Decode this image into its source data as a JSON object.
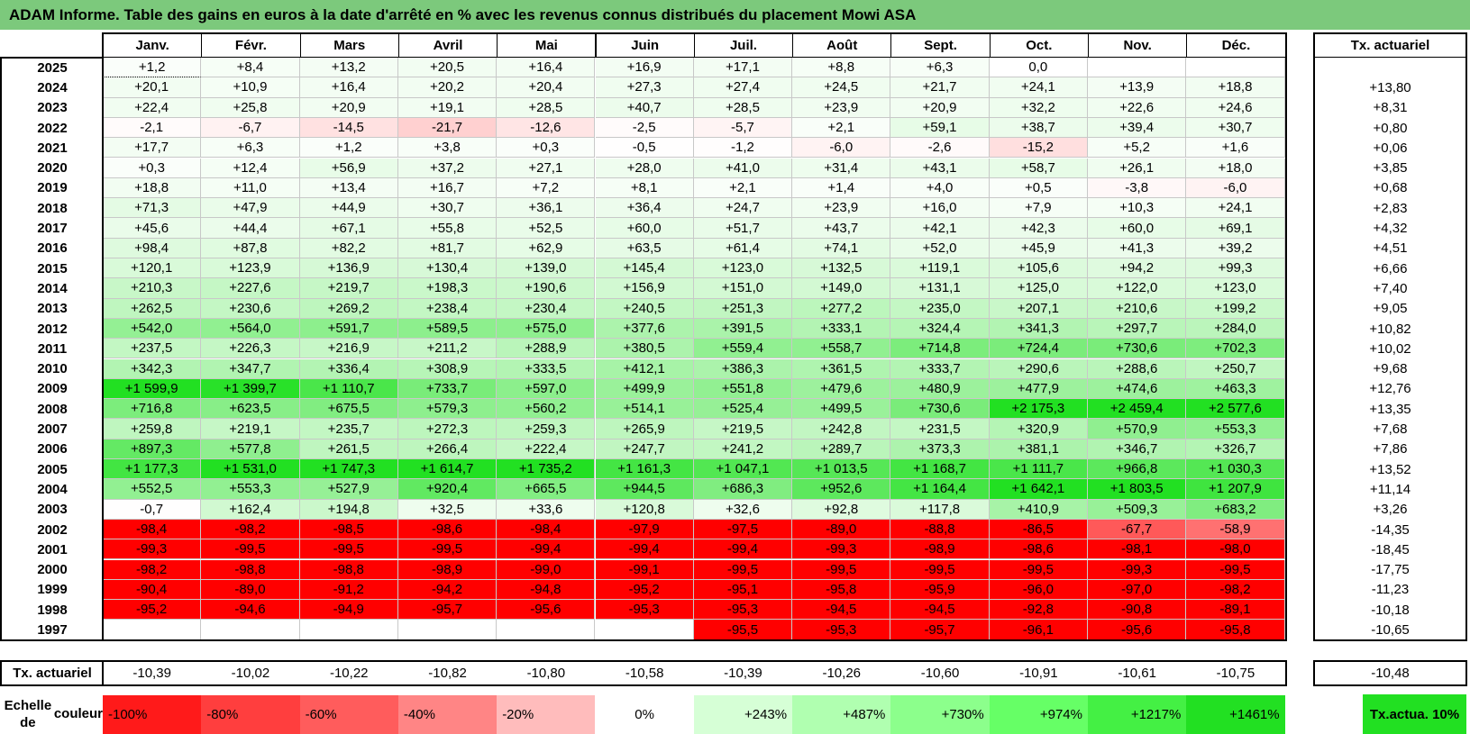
{
  "title": "ADAM Informe. Table des gains en euros à la date d'arrêté en % avec les revenus connus distribués du placement Mowi ASA",
  "chart_data": {
    "type": "heatmap",
    "columns": [
      "Janv.",
      "Févr.",
      "Mars",
      "Avril",
      "Mai",
      "Juin",
      "Juil.",
      "Août",
      "Sept.",
      "Oct.",
      "Nov.",
      "Déc."
    ],
    "actuarial_header": "Tx. actuariel",
    "rows": [
      {
        "year": "2025",
        "values": [
          "+1,2",
          "+8,4",
          "+13,2",
          "+20,5",
          "+16,4",
          "+16,9",
          "+17,1",
          "+8,8",
          "+6,3",
          "0,0",
          "",
          ""
        ],
        "actuarial": ""
      },
      {
        "year": "2024",
        "values": [
          "+20,1",
          "+10,9",
          "+16,4",
          "+20,2",
          "+20,4",
          "+27,3",
          "+27,4",
          "+24,5",
          "+21,7",
          "+24,1",
          "+13,9",
          "+18,8"
        ],
        "actuarial": "+13,80"
      },
      {
        "year": "2023",
        "values": [
          "+22,4",
          "+25,8",
          "+20,9",
          "+19,1",
          "+28,5",
          "+40,7",
          "+28,5",
          "+23,9",
          "+20,9",
          "+32,2",
          "+22,6",
          "+24,6"
        ],
        "actuarial": "+8,31"
      },
      {
        "year": "2022",
        "values": [
          "-2,1",
          "-6,7",
          "-14,5",
          "-21,7",
          "-12,6",
          "-2,5",
          "-5,7",
          "+2,1",
          "+59,1",
          "+38,7",
          "+39,4",
          "+30,7"
        ],
        "actuarial": "+0,80"
      },
      {
        "year": "2021",
        "values": [
          "+17,7",
          "+6,3",
          "+1,2",
          "+3,8",
          "+0,3",
          "-0,5",
          "-1,2",
          "-6,0",
          "-2,6",
          "-15,2",
          "+5,2",
          "+1,6"
        ],
        "actuarial": "+0,06"
      },
      {
        "year": "2020",
        "values": [
          "+0,3",
          "+12,4",
          "+56,9",
          "+37,2",
          "+27,1",
          "+28,0",
          "+41,0",
          "+31,4",
          "+43,1",
          "+58,7",
          "+26,1",
          "+18,0"
        ],
        "actuarial": "+3,85"
      },
      {
        "year": "2019",
        "values": [
          "+18,8",
          "+11,0",
          "+13,4",
          "+16,7",
          "+7,2",
          "+8,1",
          "+2,1",
          "+1,4",
          "+4,0",
          "+0,5",
          "-3,8",
          "-6,0"
        ],
        "actuarial": "+0,68"
      },
      {
        "year": "2018",
        "values": [
          "+71,3",
          "+47,9",
          "+44,9",
          "+30,7",
          "+36,1",
          "+36,4",
          "+24,7",
          "+23,9",
          "+16,0",
          "+7,9",
          "+10,3",
          "+24,1"
        ],
        "actuarial": "+2,83"
      },
      {
        "year": "2017",
        "values": [
          "+45,6",
          "+44,4",
          "+67,1",
          "+55,8",
          "+52,5",
          "+60,0",
          "+51,7",
          "+43,7",
          "+42,1",
          "+42,3",
          "+60,0",
          "+69,1"
        ],
        "actuarial": "+4,32"
      },
      {
        "year": "2016",
        "values": [
          "+98,4",
          "+87,8",
          "+82,2",
          "+81,7",
          "+62,9",
          "+63,5",
          "+61,4",
          "+74,1",
          "+52,0",
          "+45,9",
          "+41,3",
          "+39,2"
        ],
        "actuarial": "+4,51"
      },
      {
        "year": "2015",
        "values": [
          "+120,1",
          "+123,9",
          "+136,9",
          "+130,4",
          "+139,0",
          "+145,4",
          "+123,0",
          "+132,5",
          "+119,1",
          "+105,6",
          "+94,2",
          "+99,3"
        ],
        "actuarial": "+6,66"
      },
      {
        "year": "2014",
        "values": [
          "+210,3",
          "+227,6",
          "+219,7",
          "+198,3",
          "+190,6",
          "+156,9",
          "+151,0",
          "+149,0",
          "+131,1",
          "+125,0",
          "+122,0",
          "+123,0"
        ],
        "actuarial": "+7,40"
      },
      {
        "year": "2013",
        "values": [
          "+262,5",
          "+230,6",
          "+269,2",
          "+238,4",
          "+230,4",
          "+240,5",
          "+251,3",
          "+277,2",
          "+235,0",
          "+207,1",
          "+210,6",
          "+199,2"
        ],
        "actuarial": "+9,05"
      },
      {
        "year": "2012",
        "values": [
          "+542,0",
          "+564,0",
          "+591,7",
          "+589,5",
          "+575,0",
          "+377,6",
          "+391,5",
          "+333,1",
          "+324,4",
          "+341,3",
          "+297,7",
          "+284,0"
        ],
        "actuarial": "+10,82"
      },
      {
        "year": "2011",
        "values": [
          "+237,5",
          "+226,3",
          "+216,9",
          "+211,2",
          "+288,9",
          "+380,5",
          "+559,4",
          "+558,7",
          "+714,8",
          "+724,4",
          "+730,6",
          "+702,3"
        ],
        "actuarial": "+10,02"
      },
      {
        "year": "2010",
        "values": [
          "+342,3",
          "+347,7",
          "+336,4",
          "+308,9",
          "+333,5",
          "+412,1",
          "+386,3",
          "+361,5",
          "+333,7",
          "+290,6",
          "+288,6",
          "+250,7"
        ],
        "actuarial": "+9,68"
      },
      {
        "year": "2009",
        "values": [
          "+1 599,9",
          "+1 399,7",
          "+1 110,7",
          "+733,7",
          "+597,0",
          "+499,9",
          "+551,8",
          "+479,6",
          "+480,9",
          "+477,9",
          "+474,6",
          "+463,3"
        ],
        "actuarial": "+12,76"
      },
      {
        "year": "2008",
        "values": [
          "+716,8",
          "+623,5",
          "+675,5",
          "+579,3",
          "+560,2",
          "+514,1",
          "+525,4",
          "+499,5",
          "+730,6",
          "+2 175,3",
          "+2 459,4",
          "+2 577,6"
        ],
        "actuarial": "+13,35"
      },
      {
        "year": "2007",
        "values": [
          "+259,8",
          "+219,1",
          "+235,7",
          "+272,3",
          "+259,3",
          "+265,9",
          "+219,5",
          "+242,8",
          "+231,5",
          "+320,9",
          "+570,9",
          "+553,3"
        ],
        "actuarial": "+7,68"
      },
      {
        "year": "2006",
        "values": [
          "+897,3",
          "+577,8",
          "+261,5",
          "+266,4",
          "+222,4",
          "+247,7",
          "+241,2",
          "+289,7",
          "+373,3",
          "+381,1",
          "+346,7",
          "+326,7"
        ],
        "actuarial": "+7,86"
      },
      {
        "year": "2005",
        "values": [
          "+1 177,3",
          "+1 531,0",
          "+1 747,3",
          "+1 614,7",
          "+1 735,2",
          "+1 161,3",
          "+1 047,1",
          "+1 013,5",
          "+1 168,7",
          "+1 111,7",
          "+966,8",
          "+1 030,3"
        ],
        "actuarial": "+13,52"
      },
      {
        "year": "2004",
        "values": [
          "+552,5",
          "+553,3",
          "+527,9",
          "+920,4",
          "+665,5",
          "+944,5",
          "+686,3",
          "+952,6",
          "+1 164,4",
          "+1 642,1",
          "+1 803,5",
          "+1 207,9"
        ],
        "actuarial": "+11,14"
      },
      {
        "year": "2003",
        "values": [
          "-0,7",
          "+162,4",
          "+194,8",
          "+32,5",
          "+33,6",
          "+120,8",
          "+32,6",
          "+92,8",
          "+117,8",
          "+410,9",
          "+509,3",
          "+683,2"
        ],
        "actuarial": "+3,26"
      },
      {
        "year": "2002",
        "values": [
          "-98,4",
          "-98,2",
          "-98,5",
          "-98,6",
          "-98,4",
          "-97,9",
          "-97,5",
          "-89,0",
          "-88,8",
          "-86,5",
          "-67,7",
          "-58,9"
        ],
        "actuarial": "-14,35"
      },
      {
        "year": "2001",
        "values": [
          "-99,3",
          "-99,5",
          "-99,5",
          "-99,5",
          "-99,4",
          "-99,4",
          "-99,4",
          "-99,3",
          "-98,9",
          "-98,6",
          "-98,1",
          "-98,0"
        ],
        "actuarial": "-18,45"
      },
      {
        "year": "2000",
        "values": [
          "-98,2",
          "-98,8",
          "-98,8",
          "-98,9",
          "-99,0",
          "-99,1",
          "-99,5",
          "-99,5",
          "-99,5",
          "-99,5",
          "-99,3",
          "-99,5"
        ],
        "actuarial": "-17,75"
      },
      {
        "year": "1999",
        "values": [
          "-90,4",
          "-89,0",
          "-91,2",
          "-94,2",
          "-94,8",
          "-95,2",
          "-95,1",
          "-95,8",
          "-95,9",
          "-96,0",
          "-97,0",
          "-98,2"
        ],
        "actuarial": "-11,23"
      },
      {
        "year": "1998",
        "values": [
          "-95,2",
          "-94,6",
          "-94,9",
          "-95,7",
          "-95,6",
          "-95,3",
          "-95,3",
          "-94,5",
          "-94,5",
          "-92,8",
          "-90,8",
          "-89,1"
        ],
        "actuarial": "-10,18"
      },
      {
        "year": "1997",
        "values": [
          "",
          "",
          "",
          "",
          "",
          "",
          "-95,5",
          "-95,3",
          "-95,7",
          "-96,1",
          "-95,6",
          "-95,8"
        ],
        "actuarial": "-10,65"
      }
    ],
    "footer": {
      "label": "Tx. actuariel",
      "values": [
        "-10,39",
        "-10,02",
        "-10,22",
        "-10,82",
        "-10,80",
        "-10,58",
        "-10,39",
        "-10,26",
        "-10,60",
        "-10,91",
        "-10,61",
        "-10,75"
      ],
      "actuarial": "-10,48"
    },
    "legend": {
      "label_line1": "Echelle de",
      "label_line2": "couleur",
      "items": [
        {
          "label": "-100%",
          "color": "#ff1a1a",
          "align": "left"
        },
        {
          "label": "-80%",
          "color": "#ff3e3e",
          "align": "left"
        },
        {
          "label": "-60%",
          "color": "#ff5c5c",
          "align": "left"
        },
        {
          "label": "-40%",
          "color": "#ff8585",
          "align": "left"
        },
        {
          "label": "-20%",
          "color": "#ffbcbc",
          "align": "left"
        },
        {
          "label": "0%",
          "color": "#ffffff",
          "align": "center"
        },
        {
          "label": "+243%",
          "color": "#d6ffd6",
          "align": "right"
        },
        {
          "label": "+487%",
          "color": "#b0ffb0",
          "align": "right"
        },
        {
          "label": "+730%",
          "color": "#8cff8c",
          "align": "right"
        },
        {
          "label": "+974%",
          "color": "#66ff66",
          "align": "right"
        },
        {
          "label": "+1217%",
          "color": "#44f044",
          "align": "right"
        },
        {
          "label": "+1461%",
          "color": "#22e022",
          "align": "right"
        }
      ],
      "note_line1": "Tx.",
      "note_line2": "actua. 10%"
    },
    "colors": {
      "title_bar": "#7cc97c",
      "neg_max": "#ff0000",
      "pos_max": "#22e022"
    }
  }
}
